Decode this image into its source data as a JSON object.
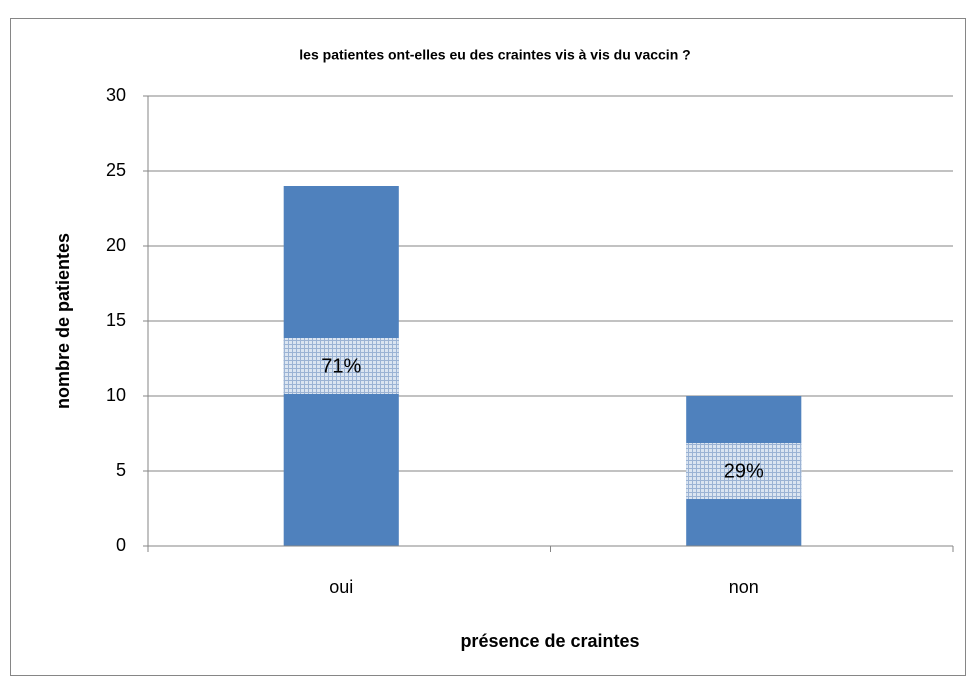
{
  "chart_data": {
    "type": "bar",
    "title": "les patientes ont-elles eu des craintes vis à vis du vaccin ?",
    "xlabel": "présence de craintes",
    "ylabel": "nombre de patientes",
    "categories": [
      "oui",
      "non"
    ],
    "values": [
      24,
      10
    ],
    "annotations": [
      "71%",
      "29%"
    ],
    "color": "#4f81bd",
    "ylim": [
      0,
      30
    ],
    "yticks": [
      0,
      5,
      10,
      15,
      20,
      25,
      30
    ],
    "grid": true
  }
}
